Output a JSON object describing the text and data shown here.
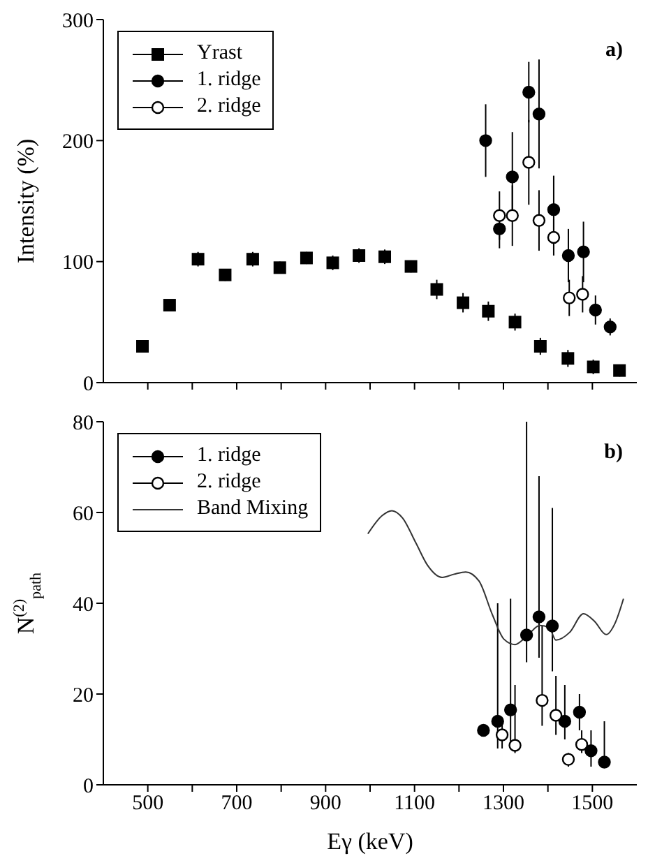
{
  "chart_data": [
    {
      "type": "scatter",
      "ylabel": "Intensity (%)",
      "annotations": [
        "a)"
      ],
      "legend": "top left",
      "tick_labels": "y",
      "xlim": [
        400,
        1600
      ],
      "xticks": [
        500,
        {
          "value": 600,
          "label": null
        },
        700,
        {
          "value": 800,
          "label": null
        },
        900,
        {
          "value": 1000,
          "label": null
        },
        1100,
        {
          "value": 1200,
          "label": null
        },
        1300,
        {
          "value": 1400,
          "label": null
        },
        1500
      ],
      "ylim": [
        0,
        300
      ],
      "yticks": [
        0,
        100,
        200,
        300
      ],
      "series": [
        {
          "name": "Yrast",
          "color": "#000000",
          "marker": "square",
          "x": [
            488,
            549,
            613,
            674,
            736,
            797,
            857,
            916,
            975,
            1033,
            1092,
            1150,
            1209,
            1266,
            1326,
            1383,
            1445,
            1502,
            1561
          ],
          "values": [
            30,
            64,
            102,
            89,
            102,
            95,
            103,
            99,
            105,
            104,
            96,
            77,
            66,
            59,
            50,
            30,
            20,
            13,
            10
          ],
          "errors": [
            3,
            4,
            6,
            5,
            6,
            5,
            5,
            6,
            6,
            6,
            5,
            8,
            8,
            8,
            7,
            7,
            7,
            6,
            5
          ]
        },
        {
          "name": "1. ridge",
          "color": "#000000",
          "marker": "circle",
          "x": [
            1260,
            1291,
            1320,
            1357,
            1380,
            1413,
            1446,
            1480,
            1507,
            1540
          ],
          "values": [
            200,
            127,
            170,
            240,
            222,
            143,
            105,
            108,
            60,
            46
          ],
          "errors": [
            30,
            16,
            37,
            25,
            45,
            28,
            22,
            25,
            12,
            7
          ]
        },
        {
          "name": "2. ridge",
          "color": "#ffffff",
          "marker": "circle",
          "x": [
            1291,
            1320,
            1357,
            1380,
            1413,
            1448,
            1478
          ],
          "values": [
            138,
            138,
            182,
            134,
            120,
            70,
            73
          ],
          "errors": [
            20,
            25,
            35,
            25,
            15,
            15,
            15
          ]
        }
      ]
    },
    {
      "type": "scatter",
      "xlabel": "Eγ (keV)",
      "ylabel": "N$^{(2)}$$_{path}$",
      "annotations": [
        "b)"
      ],
      "legend": "top left",
      "xlim": [
        400,
        1600
      ],
      "xticks": [
        500,
        {
          "value": 600,
          "label": null
        },
        700,
        {
          "value": 800,
          "label": null
        },
        900,
        {
          "value": 1000,
          "label": null
        },
        1100,
        {
          "value": 1200,
          "label": null
        },
        1300,
        {
          "value": 1400,
          "label": null
        },
        1500
      ],
      "ylim": [
        0,
        80
      ],
      "yticks": [
        0,
        20,
        40,
        60,
        80
      ],
      "series": [
        {
          "name": "1. ridge",
          "color": "#000000",
          "marker": "circle",
          "x": [
            1255,
            1287,
            1316,
            1352,
            1380,
            1410,
            1438,
            1471,
            1497,
            1527
          ],
          "values": [
            12,
            14,
            16.5,
            33,
            37,
            35,
            14,
            16,
            7.5,
            5
          ],
          "errors": [
            null,
            [
              8,
              40
            ],
            [
              9,
              41
            ],
            [
              27,
              80
            ],
            [
              28,
              68
            ],
            [
              25,
              61
            ],
            [
              10,
              22
            ],
            [
              12,
              20
            ],
            [
              4,
              12
            ],
            [
              5,
              14
            ]
          ]
        },
        {
          "name": "2. ridge",
          "color": "#ffffff",
          "marker": "circle",
          "x": [
            1297,
            1326,
            1387,
            1418,
            1446,
            1476
          ],
          "values": [
            11,
            8.7,
            18.6,
            15.3,
            5.6,
            8.9
          ],
          "errors": [
            [
              8,
              14
            ],
            [
              7,
              22
            ],
            [
              13,
              35
            ],
            [
              11,
              24
            ],
            [
              4,
              7
            ],
            [
              7,
              12
            ]
          ]
        },
        {
          "name": "Band Mixing",
          "type": "line",
          "color": "#333333",
          "marker": "none",
          "x": [
            995,
            1027,
            1049,
            1073,
            1103,
            1129,
            1162,
            1189,
            1215,
            1245,
            1275,
            1301,
            1326,
            1351,
            1382,
            1403,
            1418,
            1449,
            1480,
            1505,
            1531,
            1551,
            1570
          ],
          "values": [
            55.3,
            59.3,
            60.4,
            58.8,
            53.3,
            48.4,
            45.7,
            46.4,
            46.9,
            44.9,
            37.5,
            32.1,
            30.9,
            32.6,
            35.1,
            34.6,
            31.9,
            33.6,
            37.7,
            36,
            33.1,
            35.6,
            41
          ]
        }
      ]
    }
  ]
}
